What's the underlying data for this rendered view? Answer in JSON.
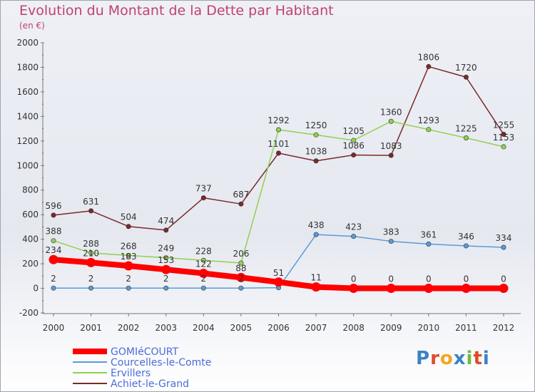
{
  "title": "Evolution du Montant de la Dette par Habitant",
  "subtitle": "(en €)",
  "logo": {
    "text": "Proxiti",
    "colors": [
      "#3b82c6",
      "#e04a2a",
      "#f4a422",
      "#3b82c6",
      "#6bbd3a",
      "#e04a2a",
      "#3b82c6"
    ]
  },
  "chart_data": {
    "type": "line",
    "title": "Evolution du Montant de la Dette par Habitant",
    "subtitle": "(en €)",
    "x": [
      2000,
      2001,
      2002,
      2003,
      2004,
      2005,
      2006,
      2007,
      2008,
      2009,
      2010,
      2011,
      2012
    ],
    "ylim": [
      -200,
      2000
    ],
    "yticks": [
      -200,
      0,
      200,
      400,
      600,
      800,
      1000,
      1200,
      1400,
      1600,
      1800,
      2000
    ],
    "grid": false,
    "legend_position": "bottom-left",
    "series": [
      {
        "name": "GOMIéCOURT",
        "color": "#ff0000",
        "width": 8,
        "values": [
          234,
          210,
          183,
          153,
          122,
          88,
          51,
          11,
          0,
          0,
          0,
          0,
          0
        ],
        "labels": [
          "234",
          "210",
          "183",
          "153",
          "122",
          "88",
          "51",
          "11",
          "0",
          "0",
          "0",
          "0",
          "0"
        ]
      },
      {
        "name": "Courcelles-le-Comte",
        "color": "#5b9bd5",
        "width": 1.5,
        "values": [
          2,
          2,
          2,
          2,
          2,
          2,
          5,
          438,
          423,
          383,
          361,
          346,
          334
        ],
        "labels": [
          "2",
          "2",
          "2",
          "2",
          "2",
          "2",
          "",
          "438",
          "423",
          "383",
          "361",
          "346",
          "334"
        ]
      },
      {
        "name": "Ervillers",
        "color": "#8fd14f",
        "width": 1.5,
        "values": [
          388,
          288,
          268,
          249,
          228,
          206,
          1292,
          1250,
          1205,
          1360,
          1293,
          1225,
          1153
        ],
        "labels": [
          "388",
          "288",
          "268",
          "249",
          "228",
          "206",
          "1292",
          "1250",
          "1205",
          "1360",
          "1293",
          "1225",
          "1153"
        ]
      },
      {
        "name": "Achiet-le-Grand",
        "color": "#7a2a2a",
        "width": 1.5,
        "values": [
          596,
          631,
          504,
          474,
          737,
          687,
          1101,
          1038,
          1086,
          1083,
          1806,
          1720,
          1255
        ],
        "labels": [
          "596",
          "631",
          "504",
          "474",
          "737",
          "687",
          "1101",
          "1038",
          "1086",
          "1083",
          "1806",
          "1720",
          "1255"
        ]
      }
    ]
  }
}
